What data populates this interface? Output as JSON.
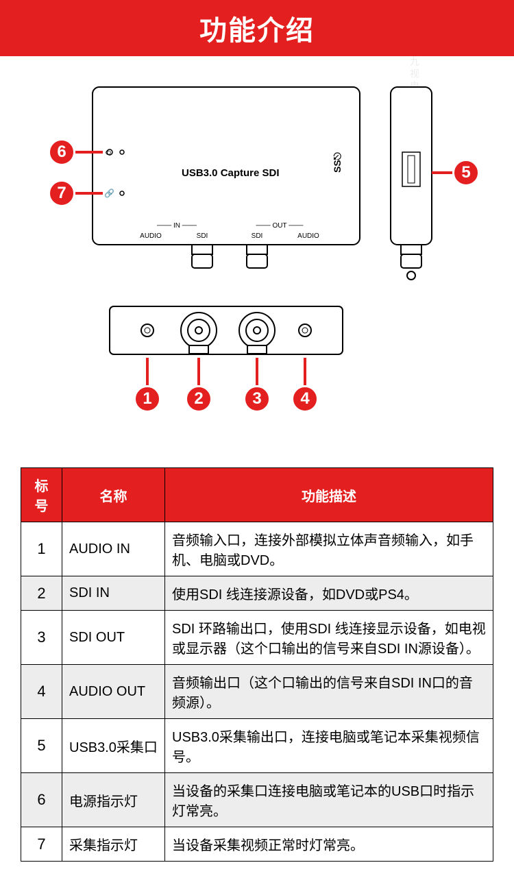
{
  "header": {
    "title": "功能介绍"
  },
  "device_label": "USB3.0 Capture SDI",
  "port_labels": {
    "in_group": "IN",
    "out_group": "OUT",
    "audio_in": "AUDIO",
    "sdi_in": "SDI",
    "sdi_out": "SDI",
    "audio_out": "AUDIO"
  },
  "ss_usb_label": "SS",
  "callouts": [
    "1",
    "2",
    "3",
    "4",
    "5",
    "6",
    "7"
  ],
  "table": {
    "headers": [
      "标号",
      "名称",
      "功能描述"
    ],
    "rows": [
      {
        "id": "1",
        "name": "AUDIO IN",
        "desc": "音频输入口，连接外部模拟立体声音频输入，如手机、电脑或DVD。",
        "alt": false
      },
      {
        "id": "2",
        "name": "SDI IN",
        "desc": "使用SDI 线连接源设备，如DVD或PS4。",
        "alt": true
      },
      {
        "id": "3",
        "name": "SDI OUT",
        "desc": "SDI 环路输出口，使用SDI 线连接显示设备，如电视或显示器（这个口输出的信号来自SDI IN源设备）。",
        "alt": false
      },
      {
        "id": "4",
        "name": "AUDIO OUT",
        "desc": "音频输出口（这个口输出的信号来自SDI IN口的音频源）。",
        "alt": true
      },
      {
        "id": "5",
        "name": "USB3.0采集口",
        "desc": "USB3.0采集输出口，连接电脑或笔记本采集视频信号。",
        "alt": false
      },
      {
        "id": "6",
        "name": "电源指示灯",
        "desc": "当设备的采集口连接电脑或笔记本的USB口时指示灯常亮。",
        "alt": true
      },
      {
        "id": "7",
        "name": "采集指示灯",
        "desc": "当设备采集视频正常时灯常亮。",
        "alt": false
      }
    ]
  },
  "colors": {
    "accent": "#e41f1f",
    "border": "#000000",
    "alt_row": "#ededed",
    "bg": "#ffffff"
  },
  "watermark": "九视电子 九视电子 九视电子 九视电子"
}
